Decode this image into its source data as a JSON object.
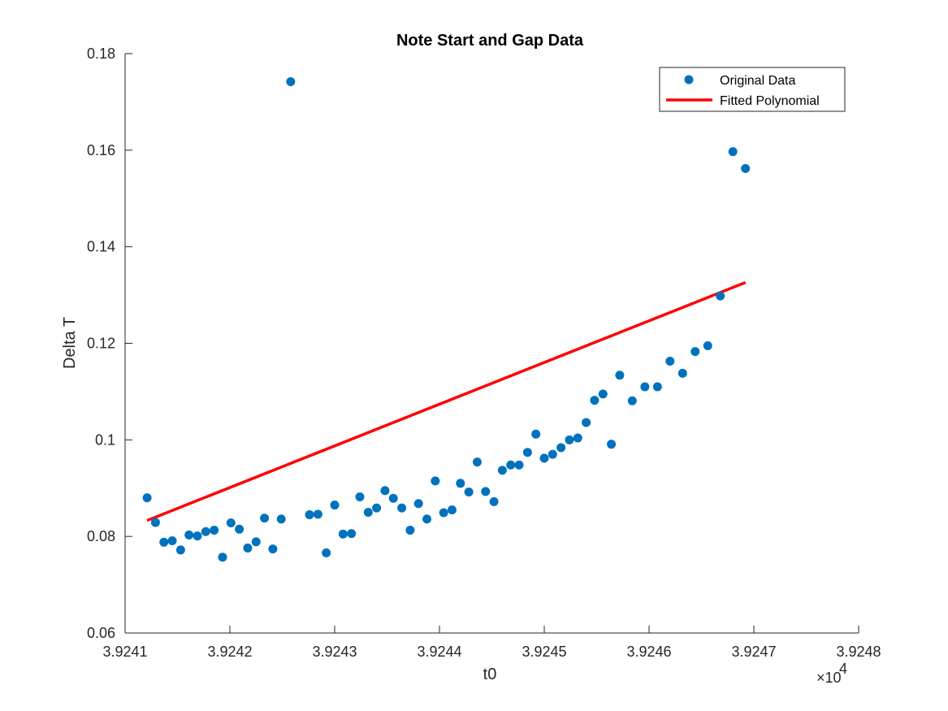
{
  "chart_data": {
    "type": "scatter",
    "title": "Note Start and Gap Data",
    "xlabel": "t0",
    "ylabel": "Delta T",
    "xlim": [
      3.9241,
      3.9248
    ],
    "ylim": [
      0.06,
      0.18
    ],
    "x_tick_labels": [
      "3.9241",
      "3.9242",
      "3.9243",
      "3.9244",
      "3.9245",
      "3.9246",
      "3.9247",
      "3.9248"
    ],
    "y_tick_labels": [
      "0.06",
      "0.08",
      "0.1",
      "0.12",
      "0.14",
      "0.16",
      "0.18"
    ],
    "x_tick_values": [
      3.9241,
      3.9242,
      3.9243,
      3.9244,
      3.9245,
      3.9246,
      3.9247,
      3.9248
    ],
    "y_tick_values": [
      0.06,
      0.08,
      0.1,
      0.12,
      0.14,
      0.16,
      0.18
    ],
    "x_exponent_multiplier": "×10",
    "x_exponent_power": "4",
    "grid": false,
    "legend_position": "top-right",
    "series": [
      {
        "name": "Original Data",
        "kind": "markers",
        "color": "#0072BD",
        "points": [
          [
            3.924121,
            0.088
          ],
          [
            3.924129,
            0.0829
          ],
          [
            3.924137,
            0.0788
          ],
          [
            3.924145,
            0.0791
          ],
          [
            3.924153,
            0.0772
          ],
          [
            3.924161,
            0.0803
          ],
          [
            3.924169,
            0.0801
          ],
          [
            3.924177,
            0.081
          ],
          [
            3.924185,
            0.0813
          ],
          [
            3.924193,
            0.0757
          ],
          [
            3.924201,
            0.0828
          ],
          [
            3.924209,
            0.0815
          ],
          [
            3.924217,
            0.0776
          ],
          [
            3.924225,
            0.0789
          ],
          [
            3.924233,
            0.0838
          ],
          [
            3.924241,
            0.0774
          ],
          [
            3.924249,
            0.0836
          ],
          [
            3.924258,
            0.1742
          ],
          [
            3.924276,
            0.0845
          ],
          [
            3.924284,
            0.0846
          ],
          [
            3.924292,
            0.0766
          ],
          [
            3.9243,
            0.0865
          ],
          [
            3.924308,
            0.0805
          ],
          [
            3.924316,
            0.0806
          ],
          [
            3.924324,
            0.0882
          ],
          [
            3.924332,
            0.085
          ],
          [
            3.92434,
            0.0859
          ],
          [
            3.924348,
            0.0895
          ],
          [
            3.924356,
            0.0879
          ],
          [
            3.924364,
            0.0859
          ],
          [
            3.924372,
            0.0813
          ],
          [
            3.92438,
            0.0868
          ],
          [
            3.924388,
            0.0836
          ],
          [
            3.924396,
            0.0915
          ],
          [
            3.924404,
            0.0849
          ],
          [
            3.924412,
            0.0855
          ],
          [
            3.92442,
            0.091
          ],
          [
            3.924428,
            0.0892
          ],
          [
            3.924436,
            0.0954
          ],
          [
            3.924444,
            0.0893
          ],
          [
            3.924452,
            0.0872
          ],
          [
            3.92446,
            0.0937
          ],
          [
            3.924468,
            0.0948
          ],
          [
            3.924476,
            0.0948
          ],
          [
            3.924484,
            0.0974
          ],
          [
            3.924492,
            0.1012
          ],
          [
            3.9245,
            0.0962
          ],
          [
            3.924508,
            0.097
          ],
          [
            3.924516,
            0.0984
          ],
          [
            3.924524,
            0.1
          ],
          [
            3.924532,
            0.1004
          ],
          [
            3.92454,
            0.1036
          ],
          [
            3.924548,
            0.1082
          ],
          [
            3.924556,
            0.1095
          ],
          [
            3.924564,
            0.0991
          ],
          [
            3.924572,
            0.1134
          ],
          [
            3.924584,
            0.1081
          ],
          [
            3.924596,
            0.111
          ],
          [
            3.924608,
            0.111
          ],
          [
            3.92462,
            0.1163
          ],
          [
            3.924632,
            0.1138
          ],
          [
            3.924644,
            0.1183
          ],
          [
            3.924656,
            0.1195
          ],
          [
            3.924668,
            0.1298
          ],
          [
            3.92468,
            0.1597
          ],
          [
            3.924692,
            0.1562
          ]
        ]
      },
      {
        "name": "Fitted Polynomial",
        "kind": "line",
        "color": "#FF0000",
        "x": [
          3.924121,
          3.924692
        ],
        "y": [
          0.0833,
          0.1326
        ]
      }
    ]
  }
}
